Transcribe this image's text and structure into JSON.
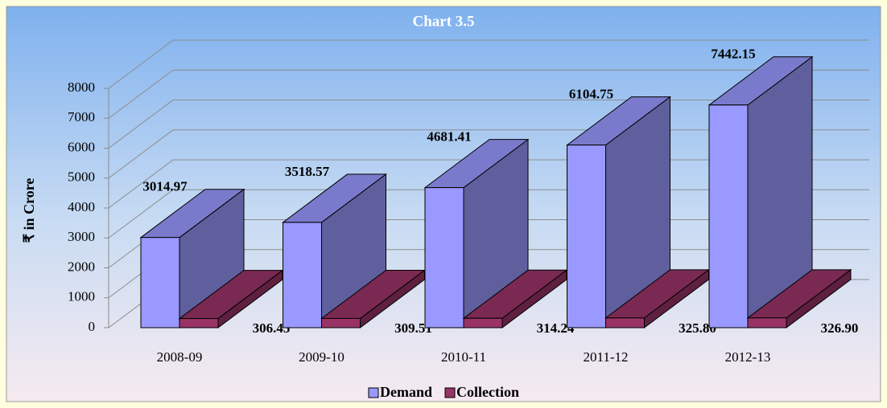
{
  "chart_data": {
    "type": "bar3d",
    "title": "Chart  3.5",
    "y_label": "₹ in Crore",
    "categories": [
      "2008-09",
      "2009-10",
      "2010-11",
      "2011-12",
      "2012-13"
    ],
    "series": [
      {
        "name": "Demand",
        "color": "#9999ff",
        "values": [
          3014.97,
          3518.57,
          4681.41,
          6104.75,
          7442.15
        ]
      },
      {
        "name": "Collection",
        "color": "#993366",
        "values": [
          306.45,
          309.51,
          314.24,
          325.8,
          326.9
        ],
        "value_labels": [
          "306.45",
          "309.51",
          "314.24",
          "325.80",
          "326.90"
        ]
      }
    ],
    "ylim": [
      0,
      8000
    ],
    "yticks": [
      0,
      1000,
      2000,
      3000,
      4000,
      5000,
      6000,
      7000,
      8000
    ],
    "grid": true,
    "legend": "bottom"
  }
}
